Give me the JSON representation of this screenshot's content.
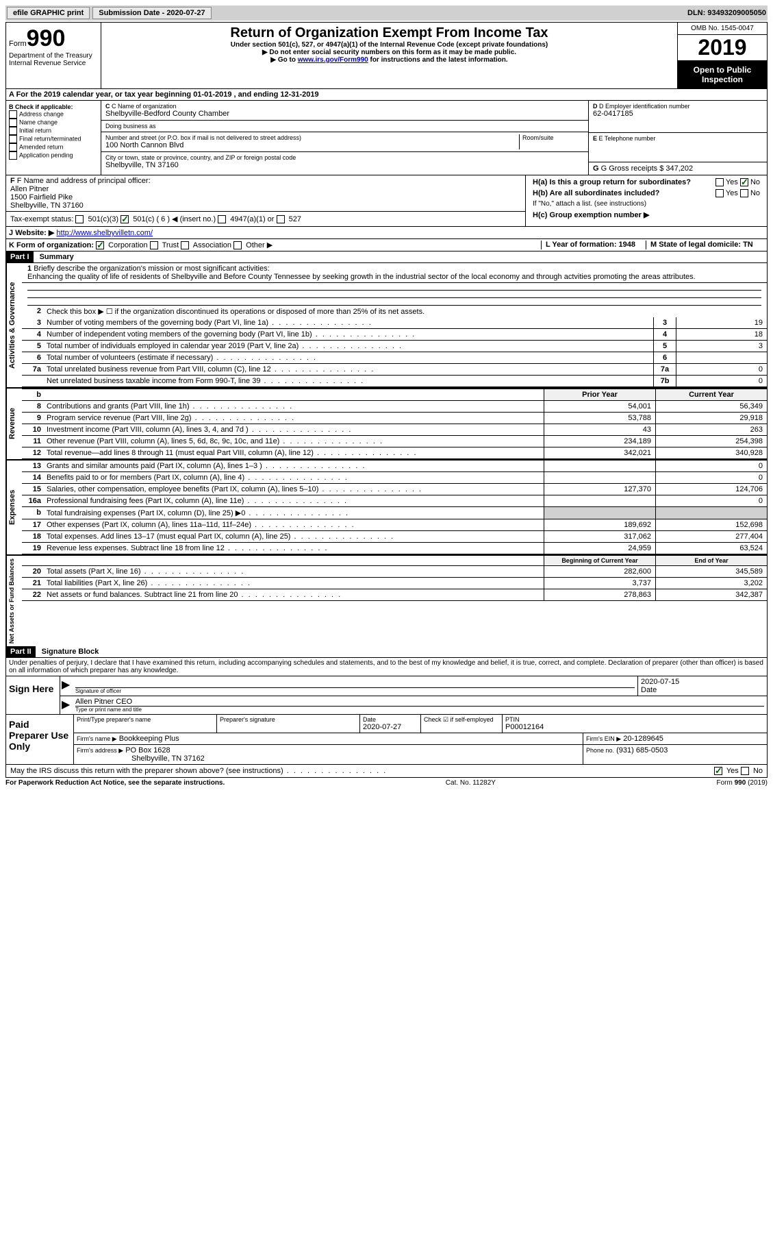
{
  "topbar": {
    "efile": "efile GRAPHIC print",
    "submission_label": "Submission Date - 2020-07-27",
    "dln": "DLN: 93493209005050"
  },
  "header": {
    "form_word": "Form",
    "form_num": "990",
    "dept": "Department of the Treasury\nInternal Revenue Service",
    "title": "Return of Organization Exempt From Income Tax",
    "subtitle": "Under section 501(c), 527, or 4947(a)(1) of the Internal Revenue Code (except private foundations)",
    "note1": "▶ Do not enter social security numbers on this form as it may be made public.",
    "note2_pre": "▶ Go to ",
    "note2_link": "www.irs.gov/Form990",
    "note2_post": " for instructions and the latest information.",
    "omb": "OMB No. 1545-0047",
    "year": "2019",
    "open": "Open to Public Inspection"
  },
  "lineA": "A For the 2019 calendar year, or tax year beginning 01-01-2019   , and ending 12-31-2019",
  "sectionB": {
    "label": "B Check if applicable:",
    "opts": [
      "Address change",
      "Name change",
      "Initial return",
      "Final return/terminated",
      "Amended return",
      "Application pending"
    ],
    "c_label": "C Name of organization",
    "c_name": "Shelbyville-Bedford County Chamber",
    "dba_label": "Doing business as",
    "addr_label": "Number and street (or P.O. box if mail is not delivered to street address)",
    "room_label": "Room/suite",
    "addr": "100 North Cannon Blvd",
    "city_label": "City or town, state or province, country, and ZIP or foreign postal code",
    "city": "Shelbyville, TN  37160",
    "d_label": "D Employer identification number",
    "d_val": "62-0417185",
    "e_label": "E Telephone number",
    "g_label": "G Gross receipts $ 347,202"
  },
  "sectionF": {
    "label": "F  Name and address of principal officer:",
    "name": "Allen Pitner",
    "street": "1500 Fairfield Pike",
    "city": "Shelbyville, TN  37160"
  },
  "sectionH": {
    "a": "H(a)  Is this a group return for subordinates?",
    "b": "H(b)  Are all subordinates included?",
    "b_note": "If \"No,\" attach a list. (see instructions)",
    "c": "H(c)  Group exemption number ▶",
    "yes": "Yes",
    "no": "No"
  },
  "taxExempt": {
    "label": "Tax-exempt status:",
    "c3": "501(c)(3)",
    "c": "501(c) ( 6 ) ◀ (insert no.)",
    "a1": "4947(a)(1) or",
    "s527": "527"
  },
  "lineJ": {
    "label": "J",
    "website_label": "Website: ▶",
    "website": "http://www.shelbyvilletn.com/"
  },
  "lineK": {
    "label": "K Form of organization:",
    "corp": "Corporation",
    "trust": "Trust",
    "assoc": "Association",
    "other": "Other ▶"
  },
  "lineL": {
    "label": "L Year of formation: 1948"
  },
  "lineM": {
    "label": "M State of legal domicile: TN"
  },
  "partI": {
    "header": "Part I",
    "title": "Summary"
  },
  "activities": {
    "label": "Activities & Governance",
    "line1_label": "1",
    "line1_text": "Briefly describe the organization's mission or most significant activities:",
    "line1_val": "Enhancing the quality of life of residents of Shelbyville and Before County Tennessee by seeking growth in the industrial sector of the local economy and through actvities promoting the areas attributes.",
    "line2": "Check this box ▶ ☐ if the organization discontinued its operations or disposed of more than 25% of its net assets.",
    "lines": [
      {
        "n": "3",
        "t": "Number of voting members of the governing body (Part VI, line 1a)",
        "c": "3",
        "v": "19"
      },
      {
        "n": "4",
        "t": "Number of independent voting members of the governing body (Part VI, line 1b)",
        "c": "4",
        "v": "18"
      },
      {
        "n": "5",
        "t": "Total number of individuals employed in calendar year 2019 (Part V, line 2a)",
        "c": "5",
        "v": "3"
      },
      {
        "n": "6",
        "t": "Total number of volunteers (estimate if necessary)",
        "c": "6",
        "v": ""
      },
      {
        "n": "7a",
        "t": "Total unrelated business revenue from Part VIII, column (C), line 12",
        "c": "7a",
        "v": "0"
      },
      {
        "n": "",
        "t": "Net unrelated business taxable income from Form 990-T, line 39",
        "c": "7b",
        "v": "0"
      }
    ]
  },
  "revenue": {
    "label": "Revenue",
    "prior": "Prior Year",
    "current": "Current Year",
    "lines": [
      {
        "n": "8",
        "t": "Contributions and grants (Part VIII, line 1h)",
        "p": "54,001",
        "c": "56,349"
      },
      {
        "n": "9",
        "t": "Program service revenue (Part VIII, line 2g)",
        "p": "53,788",
        "c": "29,918"
      },
      {
        "n": "10",
        "t": "Investment income (Part VIII, column (A), lines 3, 4, and 7d )",
        "p": "43",
        "c": "263"
      },
      {
        "n": "11",
        "t": "Other revenue (Part VIII, column (A), lines 5, 6d, 8c, 9c, 10c, and 11e)",
        "p": "234,189",
        "c": "254,398"
      },
      {
        "n": "12",
        "t": "Total revenue—add lines 8 through 11 (must equal Part VIII, column (A), line 12)",
        "p": "342,021",
        "c": "340,928"
      }
    ]
  },
  "expenses": {
    "label": "Expenses",
    "lines": [
      {
        "n": "13",
        "t": "Grants and similar amounts paid (Part IX, column (A), lines 1–3 )",
        "p": "",
        "c": "0"
      },
      {
        "n": "14",
        "t": "Benefits paid to or for members (Part IX, column (A), line 4)",
        "p": "",
        "c": "0"
      },
      {
        "n": "15",
        "t": "Salaries, other compensation, employee benefits (Part IX, column (A), lines 5–10)",
        "p": "127,370",
        "c": "124,706"
      },
      {
        "n": "16a",
        "t": "Professional fundraising fees (Part IX, column (A), line 11e)",
        "p": "",
        "c": "0"
      },
      {
        "n": "b",
        "t": "Total fundraising expenses (Part IX, column (D), line 25) ▶0",
        "p": "shaded",
        "c": "shaded"
      },
      {
        "n": "17",
        "t": "Other expenses (Part IX, column (A), lines 11a–11d, 11f–24e)",
        "p": "189,692",
        "c": "152,698"
      },
      {
        "n": "18",
        "t": "Total expenses. Add lines 13–17 (must equal Part IX, column (A), line 25)",
        "p": "317,062",
        "c": "277,404"
      },
      {
        "n": "19",
        "t": "Revenue less expenses. Subtract line 18 from line 12",
        "p": "24,959",
        "c": "63,524"
      }
    ]
  },
  "netassets": {
    "label": "Net Assets or Fund Balances",
    "begin": "Beginning of Current Year",
    "end": "End of Year",
    "lines": [
      {
        "n": "20",
        "t": "Total assets (Part X, line 16)",
        "p": "282,600",
        "c": "345,589"
      },
      {
        "n": "21",
        "t": "Total liabilities (Part X, line 26)",
        "p": "3,737",
        "c": "3,202"
      },
      {
        "n": "22",
        "t": "Net assets or fund balances. Subtract line 21 from line 20",
        "p": "278,863",
        "c": "342,387"
      }
    ]
  },
  "partII": {
    "header": "Part II",
    "title": "Signature Block",
    "penalties": "Under penalties of perjury, I declare that I have examined this return, including accompanying schedules and statements, and to the best of my knowledge and belief, it is true, correct, and complete. Declaration of preparer (other than officer) is based on all information of which preparer has any knowledge."
  },
  "sign": {
    "label": "Sign Here",
    "sig_officer": "Signature of officer",
    "date": "2020-07-15",
    "date_label": "Date",
    "name": "Allen Pitner CEO",
    "name_label": "Type or print name and title"
  },
  "preparer": {
    "label": "Paid Preparer Use Only",
    "print_label": "Print/Type preparer's name",
    "sig_label": "Preparer's signature",
    "date_label": "Date",
    "date": "2020-07-27",
    "check_label": "Check ☑ if self-employed",
    "ptin_label": "PTIN",
    "ptin": "P00012164",
    "firm_name_label": "Firm's name    ▶",
    "firm_name": "Bookkeeping Plus",
    "firm_ein_label": "Firm's EIN ▶",
    "firm_ein": "20-1289645",
    "firm_addr_label": "Firm's address ▶",
    "firm_addr1": "PO Box 1628",
    "firm_addr2": "Shelbyville, TN  37162",
    "phone_label": "Phone no.",
    "phone": "(931) 685-0503"
  },
  "discuss": {
    "text": "May the IRS discuss this return with the preparer shown above? (see instructions)",
    "yes": "Yes",
    "no": "No"
  },
  "footer": {
    "left": "For Paperwork Reduction Act Notice, see the separate instructions.",
    "mid": "Cat. No. 11282Y",
    "right": "Form 990 (2019)"
  }
}
